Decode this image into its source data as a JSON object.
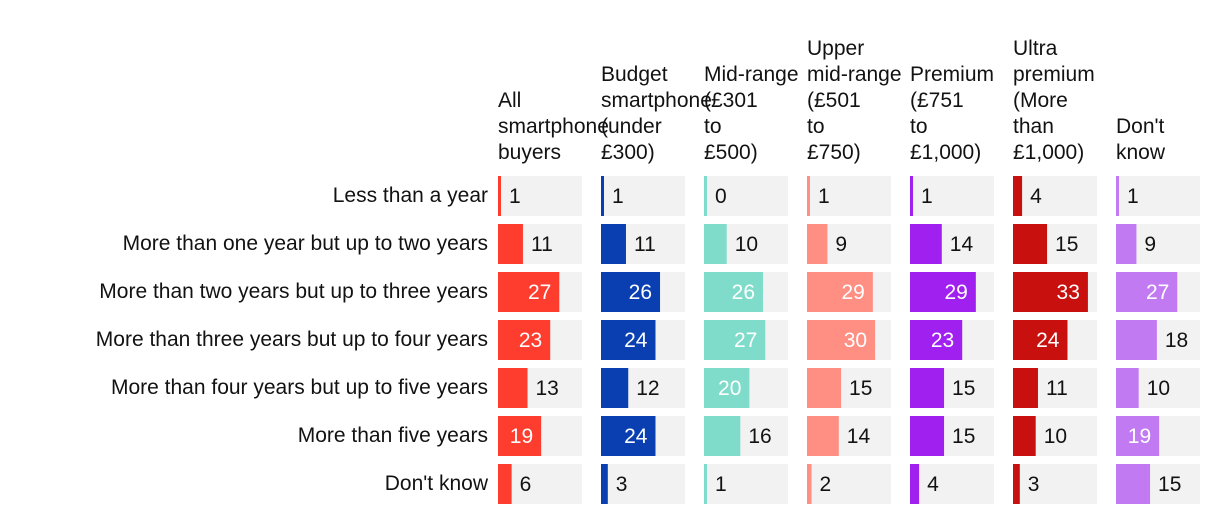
{
  "chart_data": {
    "type": "bar",
    "categories": [
      "Less than a year",
      "More than one year but up to two years",
      "More than two years but up to three years",
      "More than three years but up to four years",
      "More than four years but up to five years",
      "More than five years",
      "Don't know"
    ],
    "series": [
      {
        "name": "All smartphone buyers",
        "color": "#ff3d2e",
        "values": [
          1,
          11,
          27,
          23,
          13,
          19,
          6
        ]
      },
      {
        "name": "Budget smartphone (under £300)",
        "color": "#0a3fb2",
        "values": [
          1,
          11,
          26,
          24,
          12,
          24,
          3
        ]
      },
      {
        "name": "Mid-range (£301 to £500)",
        "color": "#7fdccb",
        "values": [
          0,
          10,
          26,
          27,
          20,
          16,
          1
        ]
      },
      {
        "name": "Upper mid-range (£501 to £750)",
        "color": "#ff8f82",
        "values": [
          1,
          9,
          29,
          30,
          15,
          14,
          2
        ]
      },
      {
        "name": "Premium (£751 to £1,000)",
        "color": "#a020f0",
        "values": [
          1,
          14,
          29,
          23,
          15,
          15,
          4
        ]
      },
      {
        "name": "Ultra premium (More than £1,000)",
        "color": "#c8100f",
        "values": [
          4,
          15,
          33,
          24,
          11,
          10,
          3
        ]
      },
      {
        "name": "Don't know",
        "color": "#c27af2",
        "values": [
          1,
          9,
          27,
          18,
          10,
          19,
          15
        ]
      }
    ],
    "xlim": [
      0,
      37
    ],
    "track_color": "#f2f2f2"
  }
}
